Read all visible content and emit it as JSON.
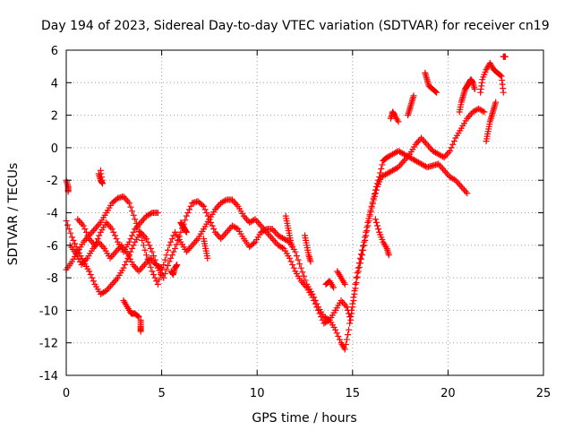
{
  "chart_data": {
    "type": "scatter",
    "title": "Day 194 of 2023, Sidereal Day-to-day VTEC variation (SDTVAR) for receiver cn19",
    "xlabel": "GPS time / hours",
    "ylabel": "SDTVAR / TECUs",
    "xlim": [
      0,
      25
    ],
    "ylim": [
      -14,
      6
    ],
    "xticks": [
      0,
      5,
      10,
      15,
      20,
      25
    ],
    "yticks": [
      -14,
      -12,
      -10,
      -8,
      -6,
      -4,
      -2,
      0,
      2,
      4,
      6
    ],
    "xtick_labels": [
      "0",
      "5",
      "10",
      "15",
      "20",
      "25"
    ],
    "ytick_labels": [
      "-14",
      "-12",
      "-10",
      "-8",
      "-6",
      "-4",
      "-2",
      "0",
      "2",
      "4",
      "6"
    ],
    "grid": true,
    "marker": "+",
    "series": [
      {
        "name": "SDTVAR",
        "color": "#ff0000",
        "tracks": [
          [
            [
              0.0,
              -4.5
            ],
            [
              0.3,
              -5.5
            ],
            [
              0.6,
              -6.3
            ],
            [
              0.9,
              -7.0
            ],
            [
              1.2,
              -7.6
            ],
            [
              1.5,
              -8.4
            ],
            [
              1.8,
              -9.0
            ],
            [
              2.1,
              -8.8
            ],
            [
              2.4,
              -8.4
            ],
            [
              2.7,
              -8.0
            ],
            [
              3.0,
              -7.4
            ],
            [
              3.3,
              -6.6
            ],
            [
              3.6,
              -5.8
            ],
            [
              3.9,
              -5.2
            ],
            [
              4.2,
              -5.6
            ],
            [
              4.5,
              -6.4
            ],
            [
              4.8,
              -7.4
            ],
            [
              5.1,
              -8.0
            ],
            [
              5.4,
              -7.0
            ],
            [
              5.7,
              -6.2
            ],
            [
              6.0,
              -5.2
            ],
            [
              6.3,
              -4.2
            ],
            [
              6.6,
              -3.4
            ],
            [
              6.9,
              -3.3
            ],
            [
              7.2,
              -3.6
            ],
            [
              7.5,
              -4.4
            ],
            [
              7.8,
              -5.2
            ],
            [
              8.1,
              -5.6
            ],
            [
              8.4,
              -5.2
            ],
            [
              8.7,
              -4.8
            ],
            [
              9.0,
              -5.0
            ],
            [
              9.3,
              -5.6
            ],
            [
              9.6,
              -6.1
            ],
            [
              9.9,
              -5.8
            ],
            [
              10.2,
              -5.2
            ],
            [
              10.5,
              -5.0
            ],
            [
              10.8,
              -5.0
            ],
            [
              11.1,
              -5.4
            ],
            [
              11.4,
              -5.6
            ],
            [
              11.7,
              -5.8
            ],
            [
              12.0,
              -6.4
            ],
            [
              12.3,
              -7.4
            ],
            [
              12.6,
              -8.4
            ],
            [
              12.9,
              -9.0
            ],
            [
              13.2,
              -9.8
            ],
            [
              13.5,
              -10.4
            ],
            [
              13.8,
              -10.6
            ],
            [
              14.1,
              -11.2
            ],
            [
              14.4,
              -12.0
            ],
            [
              14.6,
              -12.4
            ],
            [
              14.8,
              -11.2
            ],
            [
              15.0,
              -9.6
            ],
            [
              15.2,
              -8.0
            ],
            [
              15.4,
              -6.8
            ],
            [
              15.6,
              -5.8
            ],
            [
              15.8,
              -4.6
            ],
            [
              16.0,
              -3.6
            ],
            [
              16.2,
              -2.6
            ],
            [
              16.4,
              -1.8
            ],
            [
              16.6,
              -0.8
            ],
            [
              16.8,
              -0.6
            ],
            [
              17.1,
              -0.4
            ],
            [
              17.4,
              -0.2
            ],
            [
              17.7,
              -0.4
            ],
            [
              18.0,
              -0.6
            ],
            [
              18.3,
              -0.8
            ],
            [
              18.6,
              -1.0
            ],
            [
              18.9,
              -1.2
            ],
            [
              19.2,
              -1.1
            ],
            [
              19.5,
              -1.0
            ],
            [
              19.8,
              -1.4
            ],
            [
              20.1,
              -1.8
            ],
            [
              20.4,
              -2.0
            ],
            [
              20.7,
              -2.4
            ],
            [
              21.0,
              -2.8
            ]
          ],
          [
            [
              0.0,
              -7.5
            ],
            [
              0.3,
              -7.0
            ],
            [
              0.6,
              -6.4
            ],
            [
              0.9,
              -5.8
            ],
            [
              1.2,
              -5.4
            ],
            [
              1.5,
              -5.0
            ],
            [
              1.8,
              -4.6
            ],
            [
              2.1,
              -4.0
            ],
            [
              2.4,
              -3.4
            ],
            [
              2.7,
              -3.1
            ],
            [
              3.0,
              -3.0
            ],
            [
              3.3,
              -3.4
            ],
            [
              3.6,
              -4.4
            ],
            [
              3.9,
              -5.4
            ],
            [
              4.2,
              -6.6
            ],
            [
              4.5,
              -7.6
            ],
            [
              4.8,
              -8.4
            ],
            [
              5.1,
              -7.2
            ],
            [
              5.4,
              -6.0
            ],
            [
              5.7,
              -5.2
            ],
            [
              6.0,
              -5.8
            ],
            [
              6.3,
              -6.4
            ],
            [
              6.6,
              -6.0
            ],
            [
              6.9,
              -5.6
            ],
            [
              7.2,
              -5.0
            ],
            [
              7.5,
              -4.4
            ],
            [
              7.8,
              -3.8
            ],
            [
              8.1,
              -3.4
            ],
            [
              8.4,
              -3.2
            ],
            [
              8.7,
              -3.2
            ],
            [
              9.0,
              -3.6
            ],
            [
              9.3,
              -4.2
            ],
            [
              9.6,
              -4.6
            ],
            [
              9.9,
              -4.4
            ],
            [
              10.2,
              -4.8
            ],
            [
              10.5,
              -5.2
            ],
            [
              10.8,
              -5.6
            ],
            [
              11.1,
              -6.0
            ],
            [
              11.4,
              -6.2
            ],
            [
              11.7,
              -6.8
            ],
            [
              12.0,
              -7.6
            ],
            [
              12.3,
              -8.2
            ],
            [
              12.6,
              -8.6
            ],
            [
              12.9,
              -9.2
            ],
            [
              13.2,
              -10.0
            ],
            [
              13.5,
              -10.8
            ],
            [
              13.8,
              -10.6
            ],
            [
              14.1,
              -10.0
            ],
            [
              14.4,
              -9.4
            ],
            [
              14.7,
              -9.8
            ],
            [
              14.9,
              -10.6
            ],
            [
              15.1,
              -9.0
            ],
            [
              15.3,
              -7.6
            ],
            [
              15.5,
              -6.6
            ],
            [
              15.7,
              -5.4
            ],
            [
              15.9,
              -4.2
            ],
            [
              16.1,
              -3.2
            ],
            [
              16.3,
              -2.4
            ],
            [
              16.5,
              -1.8
            ],
            [
              16.8,
              -1.6
            ],
            [
              17.1,
              -1.4
            ],
            [
              17.4,
              -1.2
            ],
            [
              17.7,
              -0.8
            ],
            [
              18.0,
              -0.4
            ],
            [
              18.3,
              0.2
            ],
            [
              18.6,
              0.6
            ],
            [
              18.9,
              0.2
            ],
            [
              19.2,
              -0.2
            ],
            [
              19.5,
              -0.4
            ],
            [
              19.8,
              -0.6
            ],
            [
              20.1,
              -0.2
            ],
            [
              20.4,
              0.6
            ],
            [
              20.7,
              1.2
            ],
            [
              21.0,
              1.8
            ],
            [
              21.3,
              2.2
            ],
            [
              21.6,
              2.4
            ],
            [
              21.9,
              2.2
            ]
          ],
          [
            [
              0.2,
              -6.0
            ],
            [
              0.5,
              -6.5
            ],
            [
              0.8,
              -7.2
            ],
            [
              1.1,
              -6.8
            ],
            [
              1.4,
              -6.2
            ],
            [
              1.7,
              -5.8
            ],
            [
              2.0,
              -6.2
            ],
            [
              2.3,
              -6.8
            ],
            [
              2.6,
              -6.4
            ],
            [
              2.9,
              -6.0
            ],
            [
              3.2,
              -6.5
            ],
            [
              3.5,
              -7.2
            ],
            [
              3.8,
              -7.6
            ],
            [
              4.1,
              -7.2
            ],
            [
              4.4,
              -6.8
            ],
            [
              4.7,
              -7.2
            ],
            [
              5.0,
              -7.4
            ]
          ],
          [
            [
              0.6,
              -4.4
            ],
            [
              0.9,
              -4.8
            ],
            [
              1.2,
              -5.6
            ],
            [
              1.5,
              -6.0
            ],
            [
              1.8,
              -5.2
            ],
            [
              2.1,
              -4.6
            ],
            [
              2.4,
              -5.0
            ],
            [
              2.7,
              -5.8
            ],
            [
              3.0,
              -6.4
            ],
            [
              3.3,
              -5.8
            ],
            [
              3.6,
              -5.0
            ],
            [
              3.9,
              -4.6
            ],
            [
              4.2,
              -4.2
            ],
            [
              4.5,
              -4.0
            ],
            [
              4.8,
              -4.0
            ]
          ],
          [
            [
              17.0,
              1.8
            ],
            [
              17.1,
              2.2
            ],
            [
              17.2,
              2.0
            ],
            [
              17.4,
              1.6
            ]
          ],
          [
            [
              17.9,
              2.0
            ],
            [
              18.0,
              2.4
            ],
            [
              18.1,
              2.8
            ],
            [
              18.2,
              3.2
            ]
          ],
          [
            [
              18.8,
              4.6
            ],
            [
              18.9,
              4.2
            ],
            [
              19.0,
              3.8
            ],
            [
              19.2,
              3.6
            ],
            [
              19.4,
              3.4
            ]
          ],
          [
            [
              20.6,
              2.2
            ],
            [
              20.7,
              2.8
            ],
            [
              20.8,
              3.2
            ],
            [
              20.9,
              3.6
            ],
            [
              21.0,
              3.8
            ],
            [
              21.1,
              4.0
            ],
            [
              21.2,
              4.2
            ],
            [
              21.3,
              4.0
            ],
            [
              21.4,
              3.6
            ]
          ],
          [
            [
              21.7,
              3.4
            ],
            [
              21.8,
              4.2
            ],
            [
              22.0,
              4.8
            ],
            [
              22.2,
              5.2
            ],
            [
              22.4,
              4.8
            ],
            [
              22.6,
              4.6
            ],
            [
              22.8,
              4.4
            ],
            [
              22.9,
              3.4
            ]
          ],
          [
            [
              22.0,
              0.4
            ],
            [
              22.1,
              1.0
            ],
            [
              22.2,
              1.6
            ],
            [
              22.3,
              2.0
            ],
            [
              22.4,
              2.4
            ],
            [
              22.5,
              2.8
            ]
          ],
          [
            [
              16.2,
              -4.4
            ],
            [
              16.4,
              -5.2
            ],
            [
              16.6,
              -5.8
            ],
            [
              16.8,
              -6.2
            ],
            [
              16.9,
              -6.6
            ]
          ],
          [
            [
              5.5,
              -7.6
            ],
            [
              5.6,
              -7.8
            ],
            [
              5.7,
              -7.4
            ],
            [
              5.8,
              -7.2
            ]
          ],
          [
            [
              3.0,
              -9.4
            ],
            [
              3.2,
              -9.8
            ],
            [
              3.4,
              -10.2
            ],
            [
              3.6,
              -10.2
            ],
            [
              3.8,
              -10.4
            ]
          ],
          [
            [
              3.9,
              -10.6
            ],
            [
              3.9,
              -11.0
            ],
            [
              3.9,
              -11.3
            ]
          ],
          [
            [
              1.7,
              -1.6
            ],
            [
              1.8,
              -2.0
            ],
            [
              1.9,
              -2.2
            ],
            [
              1.8,
              -1.4
            ]
          ],
          [
            [
              0.0,
              -2.0
            ],
            [
              0.1,
              -2.4
            ],
            [
              0.1,
              -2.7
            ]
          ],
          [
            [
              6.0,
              -4.6
            ],
            [
              6.1,
              -4.8
            ],
            [
              6.2,
              -5.0
            ],
            [
              6.3,
              -5.2
            ]
          ],
          [
            [
              7.2,
              -5.6
            ],
            [
              7.3,
              -6.2
            ],
            [
              7.4,
              -6.8
            ]
          ],
          [
            [
              11.5,
              -4.2
            ],
            [
              11.6,
              -4.8
            ],
            [
              11.7,
              -5.4
            ],
            [
              11.8,
              -6.0
            ]
          ],
          [
            [
              12.5,
              -5.4
            ],
            [
              12.6,
              -6.0
            ],
            [
              12.7,
              -6.6
            ],
            [
              12.8,
              -7.0
            ]
          ],
          [
            [
              13.6,
              -8.4
            ],
            [
              13.8,
              -8.2
            ],
            [
              14.0,
              -8.6
            ]
          ],
          [
            [
              14.2,
              -7.6
            ],
            [
              14.4,
              -8.0
            ],
            [
              14.6,
              -8.4
            ]
          ],
          [
            [
              22.9,
              5.6
            ],
            [
              23.0,
              5.6
            ]
          ]
        ]
      }
    ]
  }
}
